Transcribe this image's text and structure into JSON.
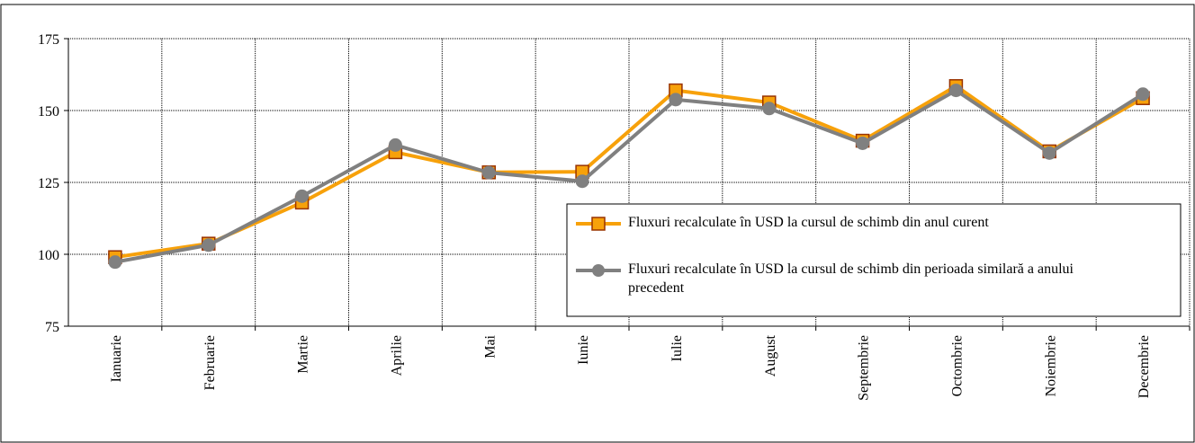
{
  "chart_data": {
    "type": "line",
    "categories": [
      "Ianuarie",
      "Februarie",
      "Martie",
      "Aprilie",
      "Mai",
      "Iunie",
      "Iulie",
      "August",
      "Septembrie",
      "Octombrie",
      "Noiembrie",
      "Decembrie"
    ],
    "series": [
      {
        "name": "Fluxuri recalculate în USD la cursul de schimb din anul curent",
        "color": "#f7a10a",
        "marker": "square",
        "marker_edge": "#993300",
        "values": [
          99,
          103.7,
          118,
          135.5,
          128.5,
          128.7,
          157,
          152.8,
          139.5,
          158.5,
          135.8,
          154.3
        ]
      },
      {
        "name": "Fluxuri recalculate în USD la cursul de schimb din perioada similară a anului precedent",
        "color": "#808080",
        "marker": "circle",
        "marker_edge": "#808080",
        "values": [
          97.3,
          103.2,
          120.2,
          138,
          128.4,
          125.4,
          153.8,
          150.7,
          138.6,
          157,
          135.2,
          155.7
        ]
      }
    ],
    "ylim": [
      75,
      175
    ],
    "yticks": [
      75,
      100,
      125,
      150,
      175
    ],
    "grid": true
  }
}
